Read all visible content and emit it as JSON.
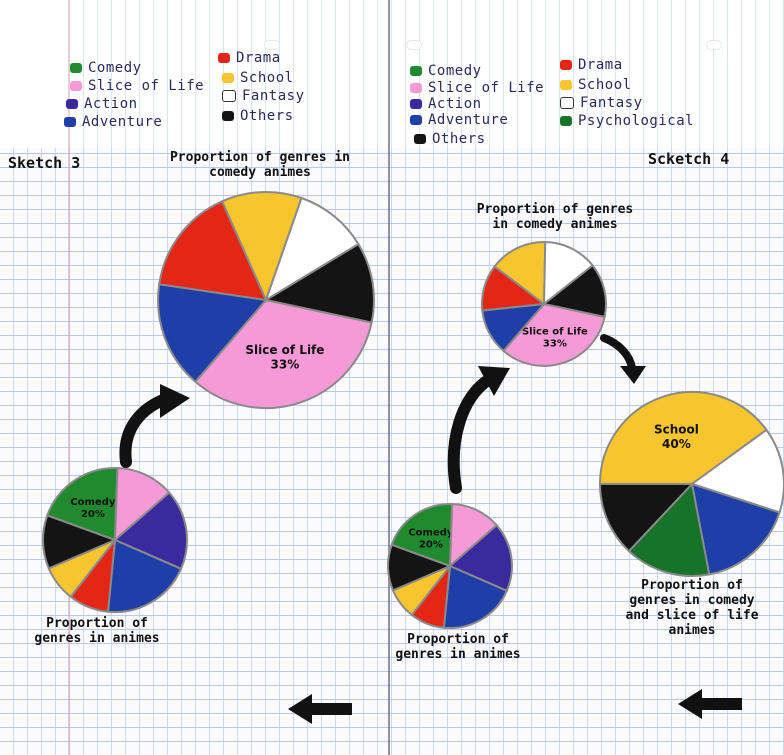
{
  "colors": {
    "comedy": "#1f8a2e",
    "slice_of_life": "#f59ad6",
    "action": "#3b2a9e",
    "adventure": "#1e3fa8",
    "drama": "#e32616",
    "school": "#f7c52e",
    "fantasy": "#ffffff",
    "others": "#141414",
    "psychological": "#17732a"
  },
  "left_page": {
    "legend": [
      {
        "label": "Comedy",
        "color": "#1f8a2e",
        "icon": "green-dot"
      },
      {
        "label": "Slice of Life",
        "color": "#f59ad6",
        "icon": "pink-dot"
      },
      {
        "label": "Action",
        "color": "#3b2a9e",
        "icon": "purple-dot"
      },
      {
        "label": "Adventure",
        "color": "#1e3fa8",
        "icon": "blue-dot"
      },
      {
        "label": "Drama",
        "color": "#e32616",
        "icon": "red-dot"
      },
      {
        "label": "School",
        "color": "#f7c52e",
        "icon": "yellow-dot"
      },
      {
        "label": "Fantasy",
        "color": "#ffffff",
        "icon": "empty-square"
      },
      {
        "label": "Others",
        "color": "#141414",
        "icon": "black-dot"
      }
    ],
    "sketch_title": "Sketch 3"
  },
  "right_page": {
    "legend": [
      {
        "label": "Comedy",
        "color": "#1f8a2e",
        "icon": "green-dot"
      },
      {
        "label": "Slice of Life",
        "color": "#f59ad6",
        "icon": "pink-dot"
      },
      {
        "label": "Action",
        "color": "#3b2a9e",
        "icon": "purple-dot"
      },
      {
        "label": "Adventure",
        "color": "#1e3fa8",
        "icon": "blue-dot"
      },
      {
        "label": "Others",
        "color": "#141414",
        "icon": "black-dot"
      },
      {
        "label": "Drama",
        "color": "#e32616",
        "icon": "red-dot"
      },
      {
        "label": "School",
        "color": "#f7c52e",
        "icon": "yellow-dot"
      },
      {
        "label": "Fantasy",
        "color": "#ffffff",
        "icon": "empty-square"
      },
      {
        "label": "Psychological",
        "color": "#17732a",
        "icon": "green-dot"
      }
    ],
    "sketch_title": "Scketch 4"
  },
  "chart_data": [
    {
      "id": "s3-comedy",
      "type": "pie",
      "title": "Proportion of genres in comedy animes",
      "slices": [
        {
          "label": "Slice of Life",
          "value": 33,
          "color": "#f59ad6",
          "text": "Slice of Life 33%"
        },
        {
          "label": "Adventure",
          "value": 16,
          "color": "#1e3fa8",
          "text": ""
        },
        {
          "label": "Drama",
          "value": 16,
          "color": "#e32616",
          "text": ""
        },
        {
          "label": "School",
          "value": 12,
          "color": "#f7c52e",
          "text": ""
        },
        {
          "label": "Fantasy",
          "value": 11,
          "color": "#ffffff",
          "text": ""
        },
        {
          "label": "Others",
          "value": 12,
          "color": "#141414",
          "text": ""
        }
      ]
    },
    {
      "id": "s3-all",
      "type": "pie",
      "title": "Proportion of genres in animes",
      "slices": [
        {
          "label": "Comedy",
          "value": 20,
          "color": "#1f8a2e",
          "text": "Comedy 20%"
        },
        {
          "label": "Slice of Life",
          "value": 13,
          "color": "#f59ad6",
          "text": ""
        },
        {
          "label": "Action",
          "value": 18,
          "color": "#3b2a9e",
          "text": ""
        },
        {
          "label": "Adventure",
          "value": 20,
          "color": "#1e3fa8",
          "text": ""
        },
        {
          "label": "Drama",
          "value": 9,
          "color": "#e32616",
          "text": ""
        },
        {
          "label": "School",
          "value": 8,
          "color": "#f7c52e",
          "text": ""
        },
        {
          "label": "Others",
          "value": 12,
          "color": "#141414",
          "text": ""
        }
      ]
    },
    {
      "id": "s4-comedy",
      "type": "pie",
      "title": "Proportion of genres in comedy animes",
      "slices": [
        {
          "label": "Slice of Life",
          "value": 33,
          "color": "#f59ad6",
          "text": "Slice of Life 33%"
        },
        {
          "label": "Adventure",
          "value": 12,
          "color": "#1e3fa8",
          "text": ""
        },
        {
          "label": "Drama",
          "value": 12,
          "color": "#e32616",
          "text": ""
        },
        {
          "label": "School",
          "value": 15,
          "color": "#f7c52e",
          "text": ""
        },
        {
          "label": "Fantasy",
          "value": 14,
          "color": "#ffffff",
          "text": ""
        },
        {
          "label": "Others",
          "value": 14,
          "color": "#141414",
          "text": ""
        }
      ]
    },
    {
      "id": "s4-all",
      "type": "pie",
      "title": "Proportion of genres in animes",
      "slices": [
        {
          "label": "Comedy",
          "value": 20,
          "color": "#1f8a2e",
          "text": "Comedy 20%"
        },
        {
          "label": "Slice of Life",
          "value": 13,
          "color": "#f59ad6",
          "text": ""
        },
        {
          "label": "Action",
          "value": 18,
          "color": "#3b2a9e",
          "text": ""
        },
        {
          "label": "Adventure",
          "value": 20,
          "color": "#1e3fa8",
          "text": ""
        },
        {
          "label": "Drama",
          "value": 9,
          "color": "#e32616",
          "text": ""
        },
        {
          "label": "School",
          "value": 8,
          "color": "#f7c52e",
          "text": ""
        },
        {
          "label": "Others",
          "value": 12,
          "color": "#141414",
          "text": ""
        }
      ]
    },
    {
      "id": "s4-comedy-sol",
      "type": "pie",
      "title": "Proportion of genres in comedy and slice of life animes",
      "slices": [
        {
          "label": "School",
          "value": 40,
          "color": "#f7c52e",
          "text": "School 40%"
        },
        {
          "label": "Fantasy",
          "value": 15,
          "color": "#ffffff",
          "text": ""
        },
        {
          "label": "Adventure",
          "value": 17,
          "color": "#1e3fa8",
          "text": ""
        },
        {
          "label": "Psychological",
          "value": 15,
          "color": "#17732a",
          "text": ""
        },
        {
          "label": "Others",
          "value": 13,
          "color": "#141414",
          "text": ""
        }
      ]
    }
  ]
}
